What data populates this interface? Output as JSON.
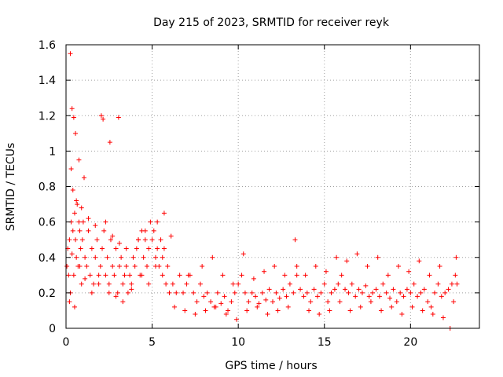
{
  "chart_data": {
    "type": "scatter",
    "title": "Day 215 of 2023, SRMTID for receiver reyk",
    "xlabel": "GPS time / hours",
    "ylabel": "SRMTID / TECUs",
    "xlim": [
      0,
      24.0
    ],
    "ylim": [
      0,
      1.6
    ],
    "xticks": [
      0,
      5,
      10,
      15,
      20
    ],
    "xtick_labels": [
      "0",
      "5",
      "10",
      "15",
      "20"
    ],
    "yticks": [
      0,
      0.2,
      0.4,
      0.6,
      0.8,
      1.0,
      1.2,
      1.4,
      1.6
    ],
    "ytick_labels": [
      "0",
      "0.2",
      "0.4",
      "0.6",
      "0.8",
      "1",
      "1.2",
      "1.4",
      "1.6"
    ],
    "grid": true,
    "marker": "+",
    "color": "#ff0000",
    "series": [
      {
        "name": "SRMTID",
        "x": [
          0.05,
          0.1,
          0.15,
          0.2,
          0.25,
          0.3,
          0.35,
          0.4,
          0.45,
          0.5,
          0.55,
          0.6,
          0.65,
          0.7,
          0.75,
          0.8,
          0.85,
          0.9,
          0.95,
          1.0,
          1.1,
          1.2,
          1.3,
          1.4,
          1.5,
          1.6,
          1.7,
          1.8,
          1.9,
          2.0,
          2.1,
          2.2,
          2.3,
          2.4,
          2.5,
          2.6,
          2.7,
          2.8,
          2.9,
          3.0,
          3.1,
          3.2,
          3.3,
          3.4,
          3.5,
          3.6,
          3.7,
          3.8,
          3.9,
          4.0,
          4.1,
          4.2,
          4.3,
          4.4,
          4.5,
          4.6,
          4.7,
          4.8,
          4.9,
          5.0,
          5.1,
          5.2,
          5.3,
          5.4,
          5.5,
          5.6,
          5.7,
          5.8,
          5.9,
          6.0,
          6.2,
          6.4,
          6.6,
          6.8,
          7.0,
          7.2,
          7.4,
          7.6,
          7.8,
          8.0,
          8.2,
          8.4,
          8.6,
          8.8,
          9.0,
          9.2,
          9.4,
          9.6,
          9.8,
          10.0,
          10.2,
          10.4,
          10.6,
          10.8,
          11.0,
          11.2,
          11.4,
          11.6,
          11.8,
          12.0,
          12.2,
          12.4,
          12.6,
          12.8,
          13.0,
          13.2,
          13.4,
          13.6,
          13.8,
          14.0,
          14.2,
          14.4,
          14.6,
          14.8,
          15.0,
          15.2,
          15.4,
          15.6,
          15.8,
          16.0,
          16.2,
          16.4,
          16.6,
          16.8,
          17.0,
          17.2,
          17.4,
          17.6,
          17.8,
          18.0,
          18.2,
          18.4,
          18.6,
          18.8,
          19.0,
          19.2,
          19.4,
          19.6,
          19.8,
          20.0,
          20.2,
          20.4,
          20.6,
          20.8,
          21.0,
          21.2,
          21.4,
          21.6,
          21.8,
          22.0,
          22.2,
          22.4,
          22.6,
          22.7,
          0.25,
          0.35,
          0.45,
          0.55,
          0.75,
          1.05,
          2.05,
          2.15,
          2.55,
          3.05,
          0.3,
          0.4,
          0.6,
          0.9,
          1.3,
          1.7,
          2.3,
          2.7,
          3.1,
          3.5,
          4.2,
          4.6,
          5.3,
          5.7,
          6.1,
          0.2,
          0.5,
          0.8,
          1.1,
          1.5,
          1.9,
          2.5,
          2.9,
          3.3,
          3.8,
          4.4,
          4.8,
          5.2,
          5.6,
          6.3,
          6.9,
          7.5,
          8.1,
          8.7,
          9.3,
          9.9,
          10.5,
          11.1,
          11.7,
          12.3,
          12.9,
          13.4,
          14.1,
          14.7,
          15.3,
          15.9,
          16.5,
          17.1,
          17.7,
          18.3,
          18.9,
          19.5,
          20.1,
          20.7,
          21.3,
          21.9,
          22.5,
          7.1,
          7.9,
          8.5,
          9.1,
          9.7,
          10.3,
          10.9,
          11.5,
          12.1,
          12.7,
          13.3,
          13.9,
          14.5,
          15.1,
          15.7,
          16.3,
          16.9,
          17.5,
          18.1,
          18.7,
          19.3,
          19.9,
          20.5,
          21.1,
          21.7,
          22.3,
          22.65
        ],
        "y": [
          0.35,
          0.45,
          0.3,
          0.5,
          0.2,
          0.6,
          0.42,
          0.55,
          0.3,
          0.65,
          0.5,
          0.4,
          0.7,
          0.35,
          0.6,
          0.55,
          0.45,
          0.25,
          0.5,
          0.6,
          0.4,
          0.35,
          0.55,
          0.3,
          0.45,
          0.25,
          0.4,
          0.5,
          0.3,
          0.35,
          0.45,
          0.55,
          0.3,
          0.4,
          0.25,
          0.5,
          0.35,
          0.3,
          0.45,
          0.2,
          0.35,
          0.4,
          0.25,
          0.3,
          0.35,
          0.2,
          0.3,
          0.25,
          0.4,
          0.35,
          0.45,
          0.5,
          0.3,
          0.55,
          0.4,
          0.5,
          0.35,
          0.45,
          0.6,
          0.5,
          0.55,
          0.4,
          0.45,
          0.35,
          0.5,
          0.3,
          0.45,
          0.25,
          0.35,
          0.2,
          0.25,
          0.2,
          0.3,
          0.2,
          0.25,
          0.3,
          0.2,
          0.15,
          0.25,
          0.18,
          0.2,
          0.15,
          0.12,
          0.2,
          0.14,
          0.18,
          0.1,
          0.15,
          0.2,
          0.25,
          0.3,
          0.2,
          0.15,
          0.2,
          0.18,
          0.14,
          0.2,
          0.16,
          0.22,
          0.15,
          0.2,
          0.17,
          0.22,
          0.18,
          0.25,
          0.2,
          0.3,
          0.22,
          0.18,
          0.2,
          0.15,
          0.22,
          0.18,
          0.2,
          0.25,
          0.15,
          0.2,
          0.22,
          0.25,
          0.3,
          0.22,
          0.2,
          0.25,
          0.18,
          0.22,
          0.2,
          0.24,
          0.18,
          0.2,
          0.22,
          0.18,
          0.25,
          0.2,
          0.17,
          0.22,
          0.15,
          0.2,
          0.18,
          0.22,
          0.2,
          0.25,
          0.18,
          0.2,
          0.22,
          0.15,
          0.12,
          0.2,
          0.25,
          0.18,
          0.2,
          0.22,
          0.25,
          0.3,
          0.25,
          1.55,
          1.24,
          1.19,
          1.1,
          0.95,
          0.85,
          1.2,
          1.18,
          1.05,
          1.19,
          0.9,
          0.78,
          0.72,
          0.68,
          0.62,
          0.58,
          0.6,
          0.52,
          0.48,
          0.45,
          0.5,
          0.55,
          0.6,
          0.65,
          0.52,
          0.15,
          0.12,
          0.35,
          0.28,
          0.2,
          0.25,
          0.2,
          0.18,
          0.15,
          0.22,
          0.3,
          0.25,
          0.35,
          0.4,
          0.12,
          0.1,
          0.08,
          0.1,
          0.12,
          0.08,
          0.05,
          0.1,
          0.12,
          0.08,
          0.1,
          0.12,
          0.35,
          0.1,
          0.08,
          0.1,
          0.15,
          0.1,
          0.12,
          0.15,
          0.1,
          0.12,
          0.08,
          0.12,
          0.1,
          0.08,
          0.06,
          0.15,
          0.3,
          0.35,
          0.4,
          0.3,
          0.25,
          0.42,
          0.28,
          0.32,
          0.35,
          0.3,
          0.5,
          0.3,
          0.35,
          0.32,
          0.4,
          0.38,
          0.42,
          0.35,
          0.4,
          0.3,
          0.35,
          0.32,
          0.38,
          0.3,
          0.35,
          0.0,
          0.4
        ]
      }
    ]
  }
}
